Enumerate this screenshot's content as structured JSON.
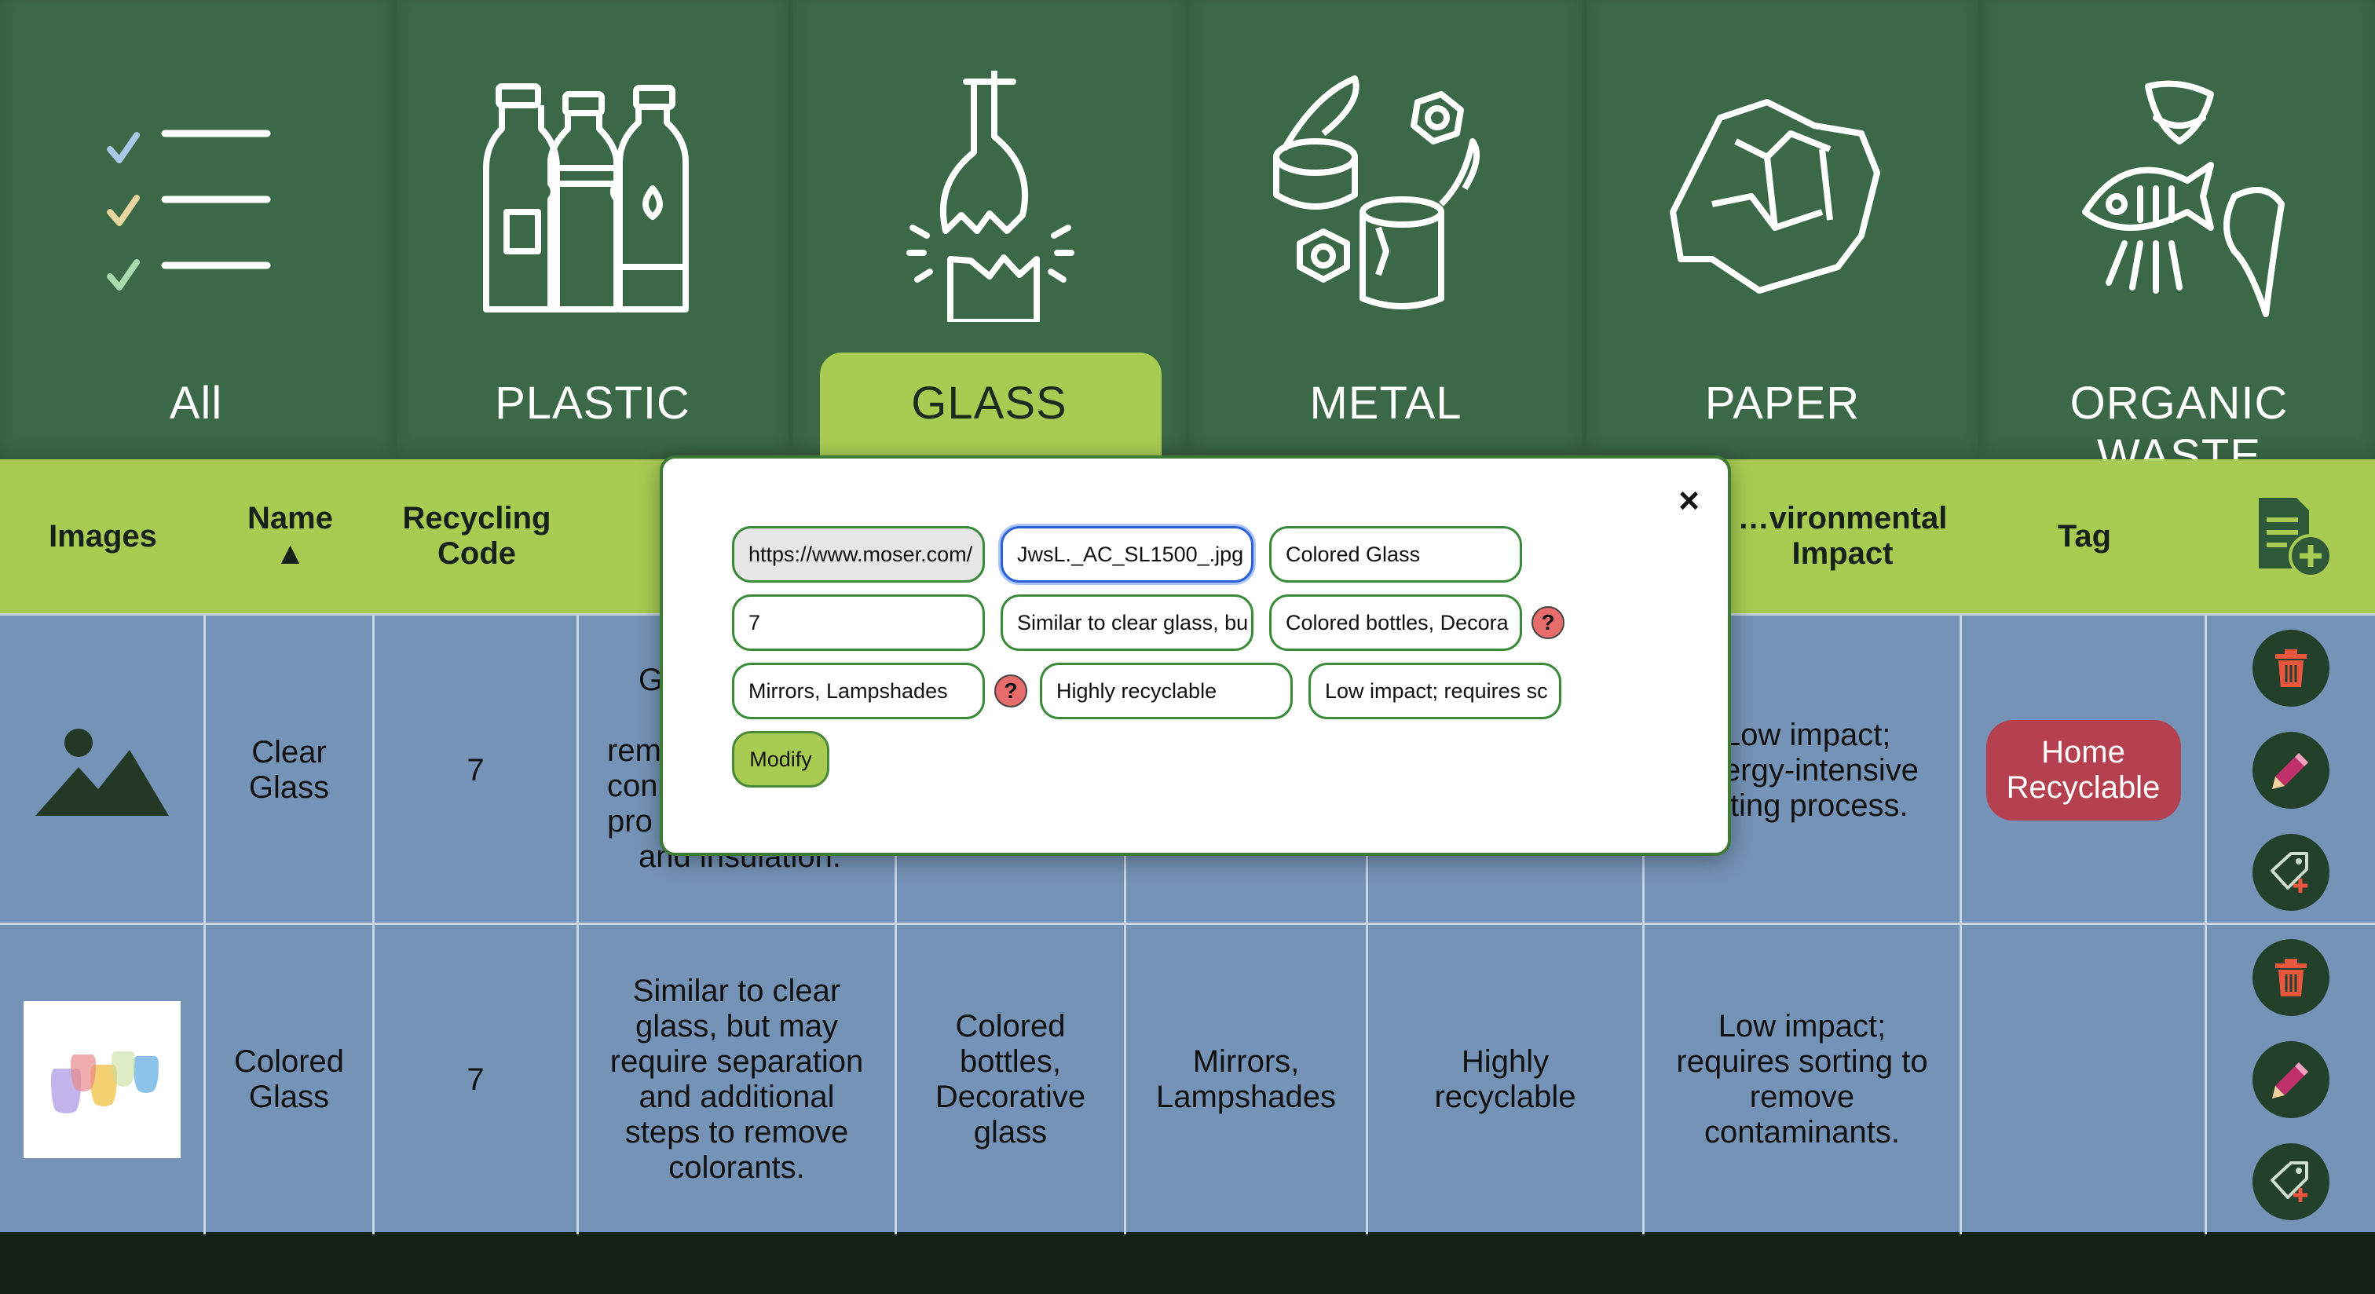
{
  "categories": [
    {
      "label": "All",
      "icon": "checklist-icon"
    },
    {
      "label": "PLASTIC",
      "icon": "plastic-bottles-icon"
    },
    {
      "label": "GLASS",
      "icon": "broken-glass-icon",
      "active": true
    },
    {
      "label": "METAL",
      "icon": "metal-cans-icon"
    },
    {
      "label": "PAPER",
      "icon": "crumpled-paper-icon"
    },
    {
      "label": "ORGANIC WASTE",
      "icon": "organic-waste-icon"
    }
  ],
  "table": {
    "headers": {
      "images": "Images",
      "name": "Name",
      "sort_indicator": "▲",
      "recycling_code": "Recycling Code",
      "environmental_impact": "Environmental Impact",
      "environmental_impact_visible": "…vironmental Impact",
      "tag": "Tag",
      "add_icon": "add-item-icon"
    },
    "rows": [
      {
        "image": "mountain-placeholder-icon",
        "name": "Clear Glass",
        "recycling_code": "7",
        "description_visible_top": "Gl",
        "description_visible_mid": "rem",
        "description_visible_mid2": "con",
        "description_visible_mid3": "pro",
        "description_visible_bottom": "and insulation.",
        "impact_line1": "Low impact;",
        "impact_line2": "ergy-intensive",
        "impact_line3": "lting process.",
        "tag": "Home Recyclable"
      },
      {
        "image": "colored-glasses-photo",
        "name": "Colored Glass",
        "recycling_code": "7",
        "description": "Similar to clear glass, but may require separation and additional steps to remove colorants.",
        "examples": "Colored bottles, Decorative glass",
        "uses": "Mirrors, Lampshades",
        "recyclability": "Highly recyclable",
        "impact": "Low impact; requires sorting to remove contaminants.",
        "tag": ""
      }
    ]
  },
  "modal": {
    "close_label": "×",
    "fields": {
      "image_url": "https://www.moser.com/",
      "image_url_end": "JwsL._AC_SL1500_.jpg",
      "name": "Colored Glass",
      "recycling_code": "7",
      "description": "Similar to clear glass, bu",
      "examples": "Colored bottles, Decora",
      "uses": "Mirrors, Lampshades",
      "recyclability": "Highly recyclable",
      "impact": "Low impact; requires sc"
    },
    "help_label": "?",
    "modify_label": "Modify"
  },
  "colors": {
    "tab_bg": "#3b6847",
    "accent_green": "#a8cc52",
    "row_blue": "#7593b6",
    "tag_red": "#b5404f",
    "action_btn": "#23402a"
  }
}
